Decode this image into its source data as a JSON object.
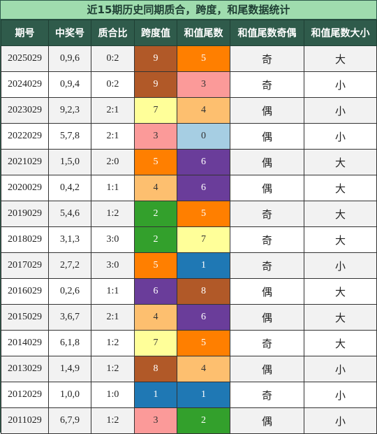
{
  "title": "近15期历史同期质合，跨度，和尾数据统计",
  "headers": [
    "期号",
    "中奖号",
    "质合比",
    "跨度值",
    "和值尾数",
    "和值尾数奇偶",
    "和值尾数大小"
  ],
  "palette": {
    "0": "#a6cee3",
    "1": "#1f78b4",
    "2": "#33a02c",
    "3": "#fb9a99",
    "4": "#fdbf6f",
    "5": "#ff7f00",
    "6": "#6a3d9a",
    "7": "#ffff99",
    "8": "#b15928",
    "9": "#b15928"
  },
  "rows": [
    {
      "issue": "2025029",
      "numbers": "0,9,6",
      "ratio": "0:2",
      "span": "9",
      "tail": "5",
      "parity": "奇",
      "size": "大"
    },
    {
      "issue": "2024029",
      "numbers": "0,9,4",
      "ratio": "0:2",
      "span": "9",
      "tail": "3",
      "parity": "奇",
      "size": "小"
    },
    {
      "issue": "2023029",
      "numbers": "9,2,3",
      "ratio": "2:1",
      "span": "7",
      "tail": "4",
      "parity": "偶",
      "size": "小"
    },
    {
      "issue": "2022029",
      "numbers": "5,7,8",
      "ratio": "2:1",
      "span": "3",
      "tail": "0",
      "parity": "偶",
      "size": "小"
    },
    {
      "issue": "2021029",
      "numbers": "1,5,0",
      "ratio": "2:0",
      "span": "5",
      "tail": "6",
      "parity": "偶",
      "size": "大"
    },
    {
      "issue": "2020029",
      "numbers": "0,4,2",
      "ratio": "1:1",
      "span": "4",
      "tail": "6",
      "parity": "偶",
      "size": "大"
    },
    {
      "issue": "2019029",
      "numbers": "5,4,6",
      "ratio": "1:2",
      "span": "2",
      "tail": "5",
      "parity": "奇",
      "size": "大"
    },
    {
      "issue": "2018029",
      "numbers": "3,1,3",
      "ratio": "3:0",
      "span": "2",
      "tail": "7",
      "parity": "奇",
      "size": "大"
    },
    {
      "issue": "2017029",
      "numbers": "2,7,2",
      "ratio": "3:0",
      "span": "5",
      "tail": "1",
      "parity": "奇",
      "size": "小"
    },
    {
      "issue": "2016029",
      "numbers": "0,2,6",
      "ratio": "1:1",
      "span": "6",
      "tail": "8",
      "parity": "偶",
      "size": "大"
    },
    {
      "issue": "2015029",
      "numbers": "3,6,7",
      "ratio": "2:1",
      "span": "4",
      "tail": "6",
      "parity": "偶",
      "size": "大"
    },
    {
      "issue": "2014029",
      "numbers": "6,1,8",
      "ratio": "1:2",
      "span": "7",
      "tail": "5",
      "parity": "奇",
      "size": "大"
    },
    {
      "issue": "2013029",
      "numbers": "1,4,9",
      "ratio": "1:2",
      "span": "8",
      "tail": "4",
      "parity": "偶",
      "size": "小"
    },
    {
      "issue": "2012029",
      "numbers": "1,0,0",
      "ratio": "1:0",
      "span": "1",
      "tail": "1",
      "parity": "奇",
      "size": "小"
    },
    {
      "issue": "2011029",
      "numbers": "6,7,9",
      "ratio": "1:2",
      "span": "3",
      "tail": "2",
      "parity": "偶",
      "size": "小"
    }
  ]
}
